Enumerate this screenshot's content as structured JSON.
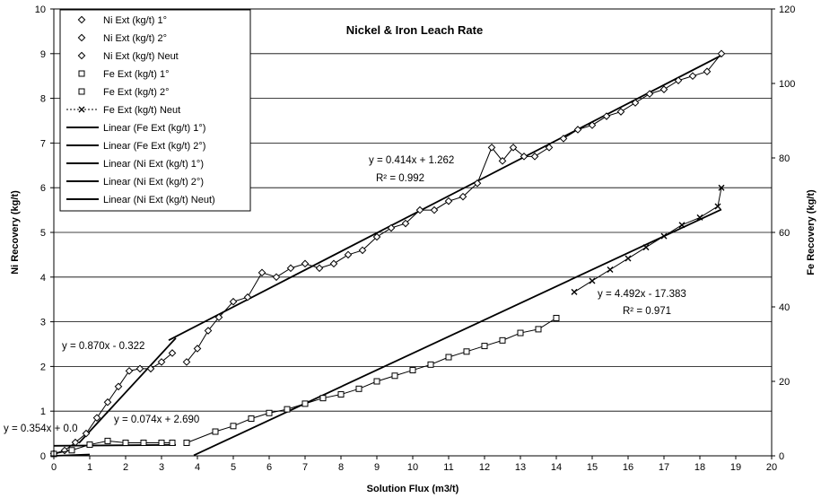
{
  "chart_data": {
    "type": "scatter",
    "title": "Nickel & Iron Leach Rate",
    "xlabel": "Solution Flux (m3/t)",
    "ylabel": "Ni Recovery (kg/t)",
    "y2label": "Fe Recovery (kg/t)",
    "xlim": [
      0,
      20
    ],
    "ylim": [
      0,
      10
    ],
    "y2lim": [
      0,
      120
    ],
    "xticks": [
      "0",
      "1",
      "2",
      "3",
      "4",
      "5",
      "6",
      "7",
      "8",
      "9",
      "10",
      "11",
      "12",
      "13",
      "14",
      "15",
      "16",
      "17",
      "18",
      "19",
      "20"
    ],
    "yticks": [
      "0",
      "1",
      "2",
      "3",
      "4",
      "5",
      "6",
      "7",
      "8",
      "9",
      "10"
    ],
    "y2ticks": [
      "0",
      "20",
      "40",
      "60",
      "80",
      "100",
      "120"
    ],
    "grid": "horizontal",
    "legend_position": "top-left",
    "legend": [
      "Ni Ext (kg/t) 1°",
      "Ni Ext (kg/t) 2°",
      "Ni Ext (kg/t) Neut",
      "Fe Ext (kg/t) 1°",
      "Fe Ext (kg/t) 2°",
      "Fe Ext (kg/t) Neut",
      "Linear (Fe Ext (kg/t) 1°)",
      "Linear (Fe Ext (kg/t) 2°)",
      "Linear (Ni Ext (kg/t) 1°)",
      "Linear (Ni Ext (kg/t) 2°)",
      "Linear (Ni Ext (kg/t) Neut)"
    ],
    "series": [
      {
        "name": "Ni Ext (kg/t) 1°",
        "axis": "left",
        "marker": "diamond",
        "x": [
          0.0,
          0.3,
          0.6,
          0.9,
          1.2,
          1.5,
          1.8,
          2.1,
          2.4,
          2.7,
          3.0,
          3.3
        ],
        "y": [
          0.05,
          0.12,
          0.3,
          0.5,
          0.85,
          1.2,
          1.55,
          1.9,
          1.95,
          1.95,
          2.1,
          2.3
        ]
      },
      {
        "name": "Ni Ext (kg/t) 2°",
        "axis": "left",
        "marker": "diamond",
        "x": [
          3.7,
          4.0,
          4.3,
          4.6,
          5.0,
          5.4,
          5.8,
          6.2,
          6.6,
          7.0,
          7.4,
          7.8,
          8.2,
          8.6,
          9.0,
          9.4,
          9.8,
          10.2,
          10.6,
          11.0,
          11.4,
          11.8,
          12.2,
          12.5,
          12.8,
          13.1,
          13.4,
          13.8
        ],
        "y": [
          2.1,
          2.4,
          2.8,
          3.1,
          3.45,
          3.55,
          4.1,
          4.0,
          4.2,
          4.3,
          4.2,
          4.3,
          4.5,
          4.6,
          4.9,
          5.1,
          5.2,
          5.5,
          5.5,
          5.7,
          5.8,
          6.1,
          6.9,
          6.6,
          6.9,
          6.7,
          6.7,
          6.9
        ]
      },
      {
        "name": "Ni Ext (kg/t) Neut",
        "axis": "left",
        "marker": "diamond",
        "x": [
          14.2,
          14.6,
          15.0,
          15.4,
          15.8,
          16.2,
          16.6,
          17.0,
          17.4,
          17.8,
          18.2,
          18.6
        ],
        "y": [
          7.1,
          7.3,
          7.4,
          7.6,
          7.7,
          7.9,
          8.1,
          8.2,
          8.4,
          8.5,
          8.6,
          9.0
        ]
      },
      {
        "name": "Fe Ext (kg/t) 1°",
        "axis": "right",
        "marker": "square",
        "x": [
          0.0,
          0.5,
          1.0,
          1.5,
          2.0,
          2.5,
          3.0,
          3.3
        ],
        "y": [
          0.5,
          1.5,
          3.0,
          4.0,
          3.5,
          3.5,
          3.5,
          3.5
        ]
      },
      {
        "name": "Fe Ext (kg/t) 2°",
        "axis": "right",
        "marker": "square",
        "x": [
          3.7,
          4.5,
          5.0,
          5.5,
          6.0,
          6.5,
          7.0,
          7.5,
          8.0,
          8.5,
          9.0,
          9.5,
          10.0,
          10.5,
          11.0,
          11.5,
          12.0,
          12.5,
          13.0,
          13.5,
          14.0
        ],
        "y": [
          3.5,
          6.5,
          8.0,
          10.0,
          11.5,
          12.5,
          14.0,
          15.5,
          16.5,
          18.0,
          20.0,
          21.5,
          23.0,
          24.5,
          26.5,
          28.0,
          29.5,
          31.0,
          33.0,
          34.0,
          37.0
        ]
      },
      {
        "name": "Fe Ext (kg/t) Neut",
        "axis": "right",
        "marker": "x",
        "x": [
          14.5,
          15.0,
          15.5,
          16.0,
          16.5,
          17.0,
          17.5,
          18.0,
          18.5,
          18.6
        ],
        "y": [
          44.0,
          47.0,
          50.0,
          53.0,
          56.0,
          59.0,
          62.0,
          64.0,
          67.0,
          72.0
        ]
      }
    ],
    "trendlines": [
      {
        "label": "y = 0.414x + 1.262",
        "r2": "R² = 0.992",
        "axis": "left",
        "slope": 0.414,
        "intercept": 1.262,
        "x_range": [
          3.2,
          18.6
        ]
      },
      {
        "label": "y = 0.870x - 0.322",
        "axis": "left",
        "slope": 0.87,
        "intercept": -0.322,
        "x_range": [
          0.7,
          3.4
        ]
      },
      {
        "label": "y = 4.492x - 17.383",
        "r2": "R² = 0.971",
        "axis": "right",
        "slope": 4.492,
        "intercept": -17.383,
        "x_range": [
          3.9,
          18.6
        ]
      },
      {
        "label": "y = 0.074x + 2.690",
        "axis": "right",
        "slope": 0.074,
        "intercept": 2.69,
        "x_range": [
          0.0,
          3.4
        ]
      },
      {
        "label": "y = 0.354x + 0.0",
        "axis": "right",
        "slope": 0.354,
        "intercept": 0.0,
        "x_range": [
          0.0,
          1.0
        ]
      }
    ]
  }
}
